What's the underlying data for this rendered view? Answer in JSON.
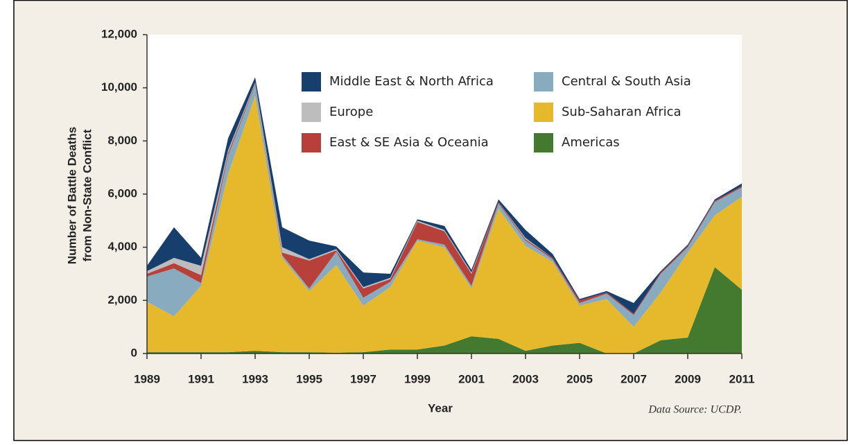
{
  "chart_data": {
    "type": "stacked_area",
    "ylabel": [
      "Number of Battle Deaths",
      "from Non-State Conflict"
    ],
    "xlabel": "Year",
    "source": "Data Source: UCDP.",
    "x": [
      1989,
      1990,
      1991,
      1992,
      1993,
      1994,
      1995,
      1996,
      1997,
      1998,
      1999,
      2000,
      2001,
      2002,
      2003,
      2004,
      2005,
      2006,
      2007,
      2008,
      2009,
      2010,
      2011
    ],
    "xlim": [
      1989,
      2011
    ],
    "xticks": [
      1989,
      1991,
      1993,
      1995,
      1997,
      1999,
      2001,
      2003,
      2005,
      2007,
      2009,
      2011
    ],
    "ylim": [
      0,
      12000
    ],
    "yticks": [
      0,
      {
        "value": 2000,
        "label": "2,000"
      },
      {
        "value": 4000,
        "label": "4,000"
      },
      {
        "value": 6000,
        "label": "6,000"
      },
      {
        "value": 8000,
        "label": "8,000"
      },
      {
        "value": 10000,
        "label": "10,000"
      },
      {
        "value": 12000,
        "label": "12,000"
      }
    ],
    "series": [
      {
        "name": "Americas",
        "color": "#437a30",
        "values": [
          50,
          50,
          50,
          50,
          100,
          50,
          50,
          30,
          50,
          150,
          150,
          300,
          650,
          550,
          100,
          300,
          400,
          0,
          0,
          500,
          600,
          3250,
          2400
        ]
      },
      {
        "name": "Sub-Saharan Africa",
        "color": "#e6b92c",
        "values": [
          1900,
          1350,
          2500,
          6700,
          9600,
          3550,
          2300,
          3300,
          1750,
          2350,
          4100,
          3700,
          1800,
          4900,
          3950,
          3150,
          1400,
          2050,
          1000,
          1800,
          3200,
          1950,
          3500
        ]
      },
      {
        "name": "Central & South Asia",
        "color": "#88abc0",
        "values": [
          950,
          1800,
          100,
          700,
          400,
          100,
          100,
          500,
          300,
          200,
          50,
          100,
          100,
          200,
          200,
          100,
          100,
          200,
          450,
          700,
          200,
          500,
          350
        ]
      },
      {
        "name": "East & SE Asia & Oceania",
        "color": "#b7403b",
        "values": [
          100,
          200,
          300,
          100,
          50,
          100,
          1050,
          50,
          350,
          100,
          650,
          500,
          450,
          50,
          50,
          50,
          100,
          50,
          50,
          50,
          50,
          50,
          50
        ]
      },
      {
        "name": "Europe",
        "color": "#bdbdbd",
        "values": [
          100,
          200,
          350,
          100,
          50,
          200,
          50,
          50,
          50,
          50,
          50,
          50,
          50,
          0,
          50,
          0,
          0,
          0,
          0,
          0,
          0,
          0,
          0
        ]
      },
      {
        "name": "Middle East & North Africa",
        "color": "#173f6d",
        "values": [
          200,
          1150,
          300,
          450,
          200,
          750,
          700,
          100,
          550,
          150,
          50,
          150,
          100,
          100,
          300,
          150,
          50,
          50,
          400,
          50,
          50,
          50,
          100
        ]
      }
    ]
  }
}
